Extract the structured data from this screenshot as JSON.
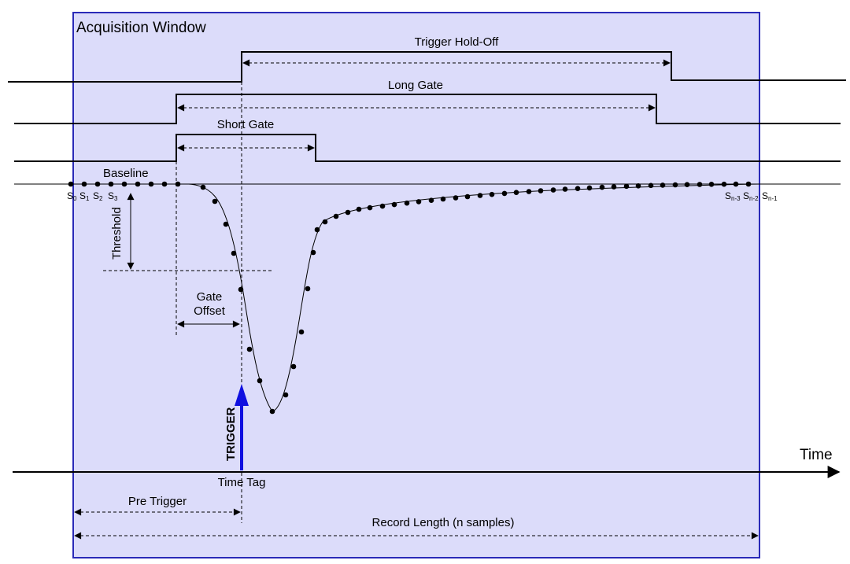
{
  "window": {
    "title": "Acquisition Window",
    "fill": "#dcdcfa",
    "border": "#2a2ab8"
  },
  "labels": {
    "trigger_holdoff": "Trigger Hold-Off",
    "long_gate": "Long Gate",
    "short_gate": "Short Gate",
    "baseline": "Baseline",
    "threshold": "Threshold",
    "gate": "Gate",
    "offset": "Offset",
    "trigger": "TRIGGER",
    "time": "Time",
    "time_tag": "Time Tag",
    "pre_trigger": "Pre Trigger",
    "record_length": "Record Length (n samples)"
  },
  "samples_left": [
    {
      "s": "S",
      "sub": "0"
    },
    {
      "s": "S",
      "sub": "1"
    },
    {
      "s": "S",
      "sub": "2"
    },
    {
      "s": "S",
      "sub": "3"
    }
  ],
  "samples_right": [
    {
      "s": "S",
      "sub": "n-3"
    },
    {
      "s": "S",
      "sub": "n-2"
    },
    {
      "s": "S",
      "sub": "n-1"
    }
  ],
  "colors": {
    "trigger_arrow": "#1010e0",
    "line": "#000000"
  }
}
